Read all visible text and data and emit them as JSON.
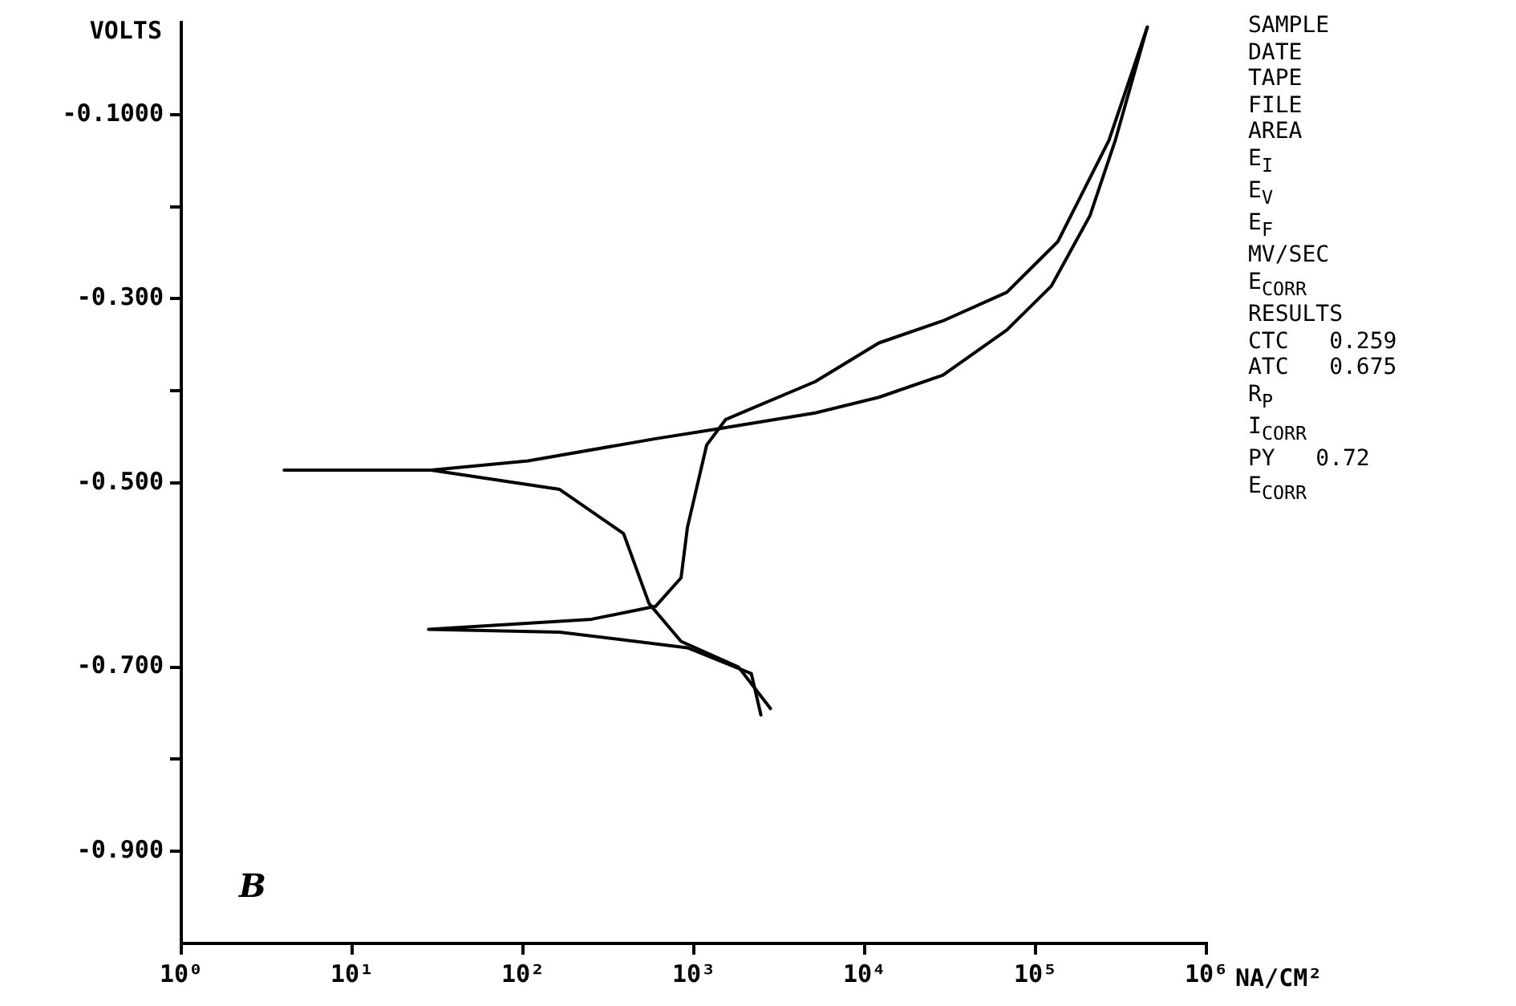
{
  "chart_data": {
    "type": "line",
    "title": "B",
    "xlabel": "NA/CM²",
    "ylabel": "VOLTS",
    "log": "x",
    "marker": "none",
    "line_style": "solid",
    "grid": false,
    "legend": false,
    "xlim": [
      1,
      1000000
    ],
    "ylim": [
      -1.0,
      0.0
    ],
    "xticks": [
      {
        "value": 1,
        "label": "10⁰"
      },
      {
        "value": 10,
        "label": "10¹"
      },
      {
        "value": 100,
        "label": "10²"
      },
      {
        "value": 1000,
        "label": "10³"
      },
      {
        "value": 10000,
        "label": "10⁴"
      },
      {
        "value": 100000,
        "label": "10⁵"
      },
      {
        "value": 1000000,
        "label": "10⁶"
      }
    ],
    "yticks": [
      {
        "value": -0.1,
        "label": "-0.1000"
      },
      {
        "value": -0.2,
        "label": null
      },
      {
        "value": -0.3,
        "label": "-0.300"
      },
      {
        "value": -0.4,
        "label": null
      },
      {
        "value": -0.5,
        "label": "-0.500"
      },
      {
        "value": -0.7,
        "label": "-0.700"
      },
      {
        "value": -0.8,
        "label": null
      },
      {
        "value": -0.9,
        "label": "-0.900"
      }
    ],
    "series": [
      {
        "color": "#000000",
        "x": [
          2810,
          1828,
          842,
          547,
          388,
          164,
          29,
          4,
          29,
          107,
          597,
          1413,
          5130,
          12100,
          28700,
          67900,
          124000,
          208000,
          293000,
          451000
        ],
        "values": [
          -0.745,
          -0.7,
          -0.672,
          -0.631,
          -0.555,
          -0.507,
          -0.486,
          -0.486,
          -0.486,
          -0.476,
          -0.452,
          -0.441,
          -0.424,
          -0.407,
          -0.383,
          -0.334,
          -0.286,
          -0.21,
          -0.128,
          -0.005
        ]
      },
      {
        "color": "#000000",
        "x": [
          2470,
          2170,
          918,
          164,
          28,
          252,
          597,
          842,
          918,
          1188,
          1538,
          5130,
          12100,
          28700,
          67900,
          135000,
          269000,
          451000
        ],
        "values": [
          -0.752,
          -0.707,
          -0.679,
          -0.662,
          -0.659,
          -0.648,
          -0.634,
          -0.603,
          -0.548,
          -0.459,
          -0.431,
          -0.39,
          -0.348,
          -0.324,
          -0.293,
          -0.238,
          -0.128,
          -0.005
        ]
      }
    ],
    "annotations": [
      "SAMPLE",
      "DATE",
      "TAPE",
      "FILE",
      "AREA",
      "E$_{I}$",
      "E$_{V}$",
      "E$_{F}$",
      "MV/SEC",
      "E$_{CORR}$",
      "RESULTS",
      "CTC   0.259",
      "ATC   0.675",
      "R$_{P}$",
      "I$_{CORR}$",
      "PY   0.72",
      "E$_{CORR}$"
    ]
  }
}
